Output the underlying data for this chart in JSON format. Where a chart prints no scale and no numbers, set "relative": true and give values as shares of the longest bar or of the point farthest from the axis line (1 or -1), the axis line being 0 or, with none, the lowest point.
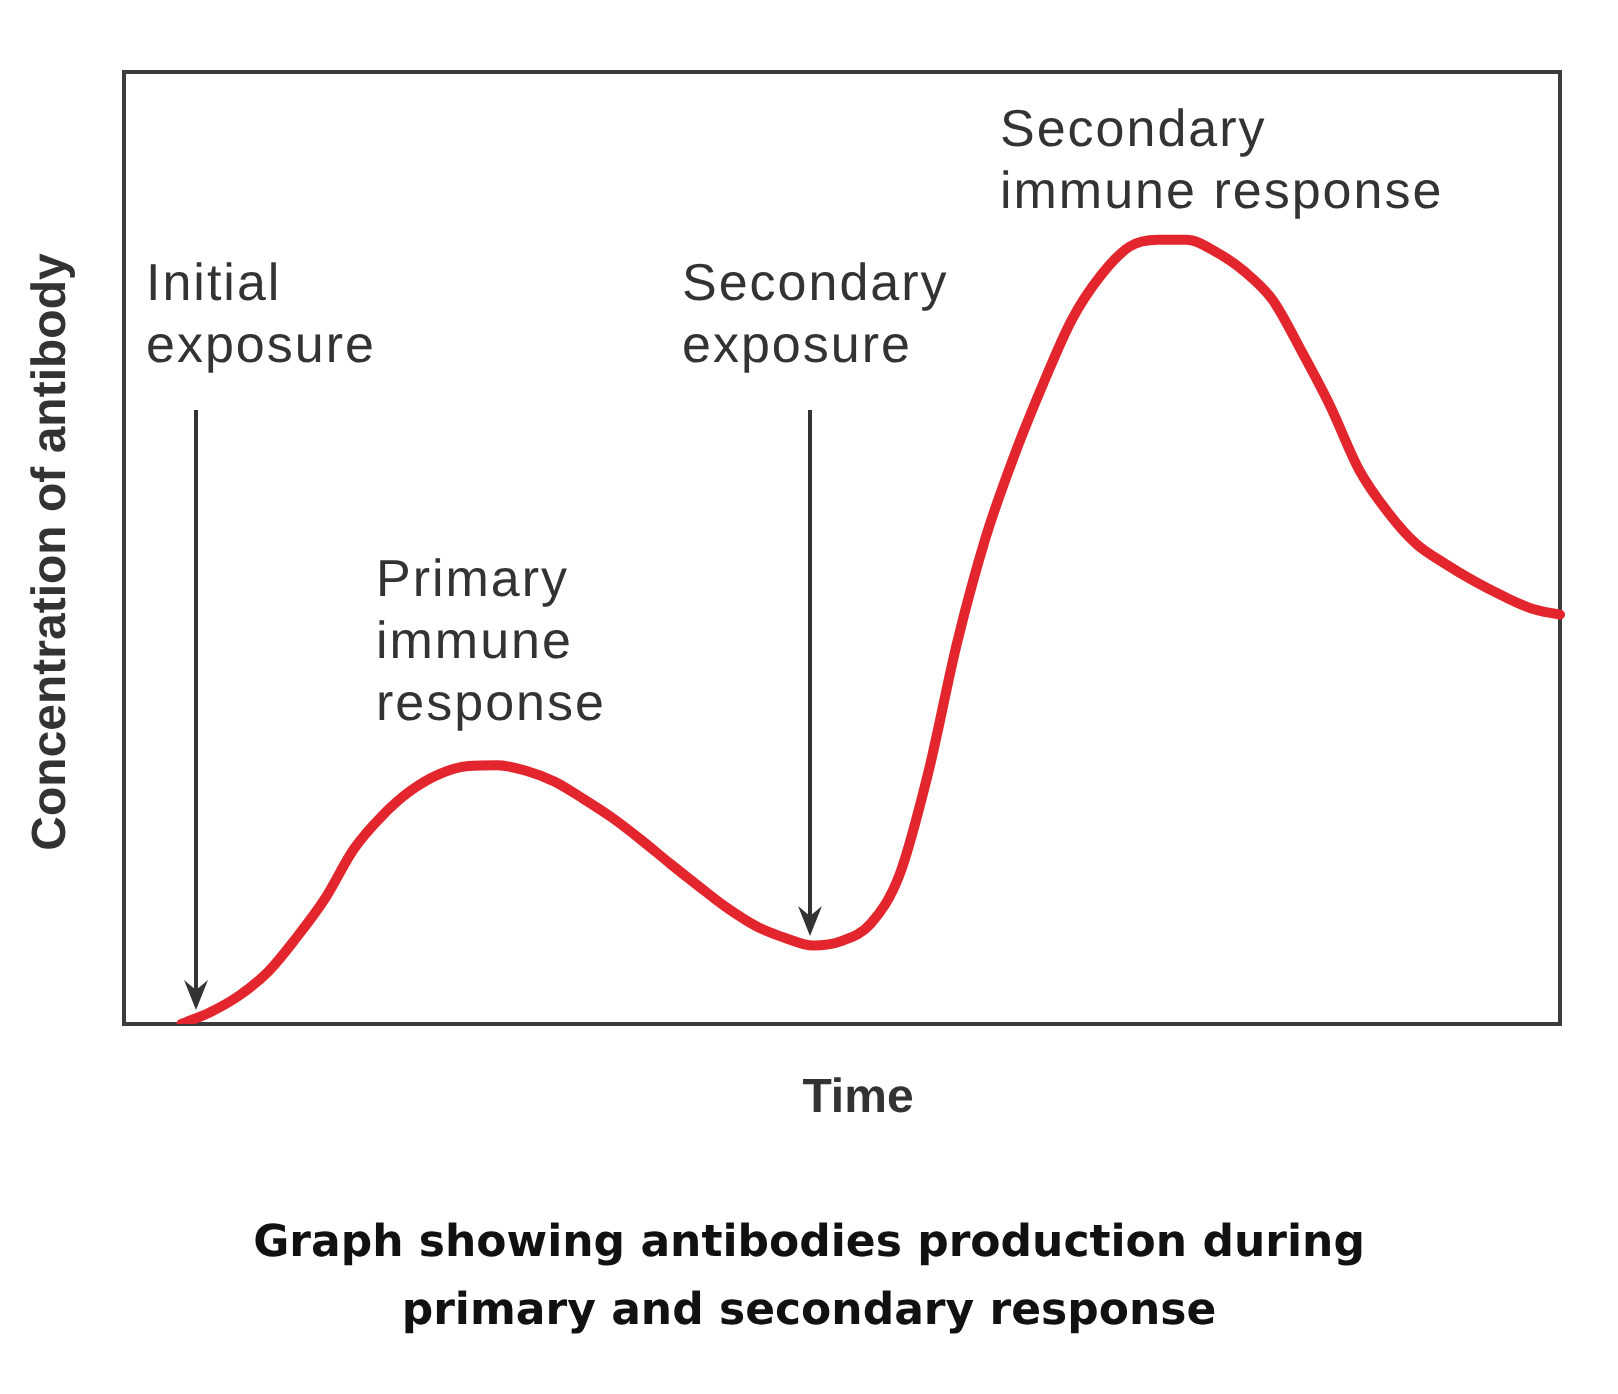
{
  "chart_data": {
    "type": "line",
    "title": "Graph showing antibodies production during primary and secondary response",
    "xlabel": "Time",
    "ylabel": "Concentration of antibody",
    "annotations": [
      "Initial exposure",
      "Secondary exposure",
      "Primary immune response",
      "Secondary immune response"
    ],
    "relative": true,
    "categories": [
      null,
      null,
      null,
      null,
      null,
      null,
      null,
      null,
      null,
      null,
      null,
      null,
      null,
      null,
      null,
      null,
      null,
      null,
      null,
      null,
      null,
      null,
      null,
      null,
      null,
      null,
      null,
      null,
      null,
      null,
      null,
      null,
      null,
      null,
      null,
      null,
      null,
      null,
      null,
      null,
      null,
      null,
      null,
      null,
      null,
      null,
      null,
      null,
      null,
      null,
      null
    ],
    "color": "#e3262d",
    "values": [
      null,
      null,
      0,
      0.015,
      0.036,
      0.066,
      0.11,
      0.16,
      0.223,
      0.266,
      0.298,
      0.319,
      0.329,
      0.33,
      0.323,
      0.309,
      0.287,
      0.263,
      0.235,
      0.205,
      0.176,
      0.148,
      0.125,
      0.11,
      0.1,
      0.106,
      0.128,
      0.19,
      0.32,
      0.485,
      0.62,
      0.725,
      0.816,
      0.898,
      0.954,
      0.991,
      1,
      1,
      0.985,
      0.96,
      0.923,
      0.858,
      0.788,
      0.707,
      0.653,
      0.612,
      0.587,
      0.565,
      0.546,
      0.53,
      0.522
    ]
  }
}
